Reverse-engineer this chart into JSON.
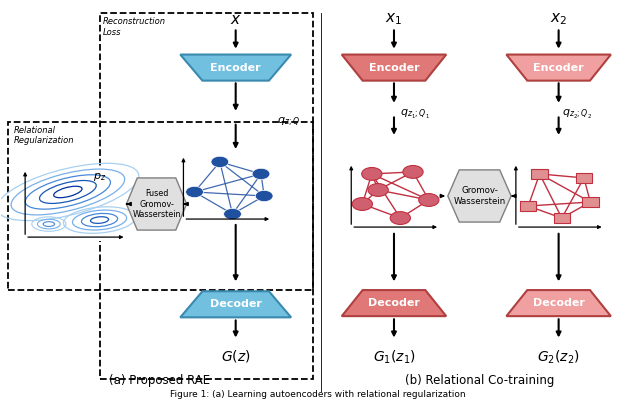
{
  "blue_enc_color": "#72C0E0",
  "blue_enc_edge": "#3A8AB0",
  "blue_dec_color": "#72C0E0",
  "blue_dec_edge": "#3A8AB0",
  "red_enc1_color": "#E07878",
  "red_enc1_edge": "#B04040",
  "red_enc2_color": "#F0A0A0",
  "red_enc2_edge": "#B04040",
  "red_dec1_color": "#E07878",
  "red_dec1_edge": "#B04040",
  "red_dec2_color": "#F0A0A0",
  "red_dec2_edge": "#B04040",
  "gw_color": "#E0E0E0",
  "gw_edge": "#808080",
  "blue_node": "#2050A0",
  "blue_line": "#2050A0",
  "red_node": "#C03040",
  "red_line": "#C03040",
  "red_node_fill": "#D06070",
  "pink_node_fill": "#E09090",
  "bg_color": "#FFFFFF",
  "caption_a": "(a) Proposed RAE",
  "caption_b": "(b) Relational Co-training",
  "fig_caption": "Figure 1: (a) Learning autoencoders with relational regularization"
}
